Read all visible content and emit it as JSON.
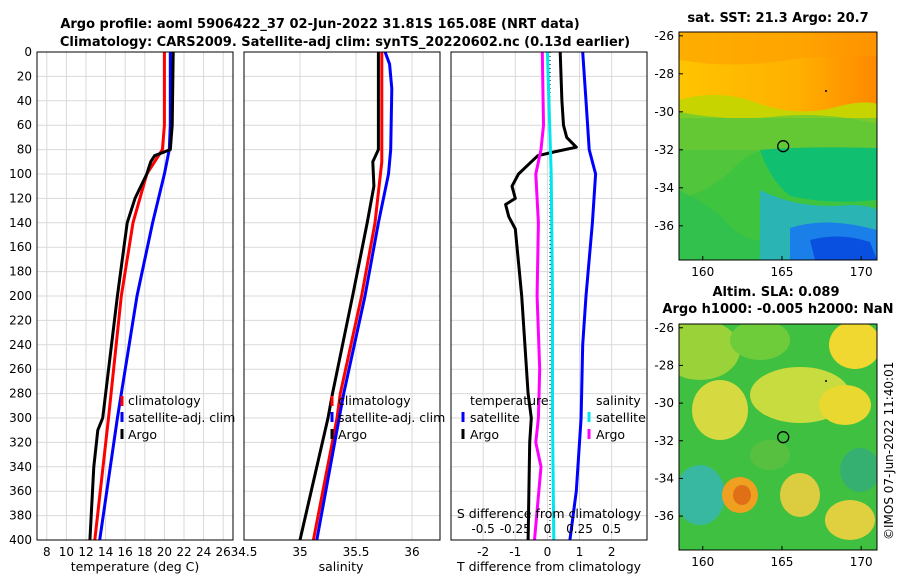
{
  "title": {
    "line1": "Argo profile: aoml 5906422_37 02-Jun-2022 31.81S 165.08E (NRT data)",
    "line2": "Climatology: CARS2009. Satellite-adj clim: synTS_20220602.nc (0.13d earlier)"
  },
  "depth_ticks": [
    "0",
    "20",
    "40",
    "60",
    "80",
    "100",
    "120",
    "140",
    "160",
    "180",
    "200",
    "220",
    "240",
    "260",
    "280",
    "300",
    "320",
    "340",
    "360",
    "380",
    "400"
  ],
  "colors": {
    "climatology": "#ff0000",
    "satellite": "#0000ff",
    "argo": "#000000",
    "sat_salinity": "#00e5ee",
    "argo_salinity": "#ff00ff"
  },
  "chart_data": [
    {
      "type": "line",
      "title": "",
      "xlabel": "temperature (deg C)",
      "ylabel": "",
      "xlim": [
        7,
        27
      ],
      "ylim": [
        400,
        0
      ],
      "xticks": [
        "8",
        "10",
        "12",
        "14",
        "16",
        "18",
        "20",
        "22",
        "24",
        "26"
      ],
      "legend": {
        "placement": "center-right",
        "entries": [
          "climatology",
          "satellite-adj. clim",
          "Argo"
        ]
      },
      "series": [
        {
          "name": "climatology",
          "depth": [
            0,
            60,
            80,
            90,
            100,
            140,
            200,
            300,
            400
          ],
          "values": [
            20.0,
            20.0,
            19.8,
            19.0,
            18.2,
            16.8,
            15.6,
            14.3,
            12.9
          ]
        },
        {
          "name": "satellite-adj. clim",
          "depth": [
            0,
            60,
            80,
            100,
            140,
            200,
            300,
            400
          ],
          "values": [
            20.6,
            20.6,
            20.5,
            20.0,
            18.8,
            17.2,
            15.2,
            13.4
          ]
        },
        {
          "name": "Argo",
          "depth": [
            0,
            60,
            80,
            85,
            90,
            100,
            120,
            140,
            200,
            300,
            310,
            340,
            400
          ],
          "values": [
            20.9,
            20.8,
            20.6,
            19.0,
            18.6,
            18.2,
            17.0,
            16.2,
            15.2,
            13.7,
            13.2,
            12.8,
            12.4
          ]
        }
      ]
    },
    {
      "type": "line",
      "title": "",
      "xlabel": "salinity",
      "ylabel": "",
      "xlim": [
        34.5,
        36.25
      ],
      "ylim": [
        400,
        0
      ],
      "xticks": [
        "34.5",
        "35",
        "35.5",
        "36"
      ],
      "legend": {
        "placement": "center-right",
        "entries": [
          "climatology",
          "satellite-adj. clim",
          "Argo"
        ]
      },
      "series": [
        {
          "name": "climatology",
          "depth": [
            0,
            90,
            140,
            200,
            280,
            300,
            400
          ],
          "values": [
            35.73,
            35.73,
            35.67,
            35.55,
            35.36,
            35.33,
            35.12
          ]
        },
        {
          "name": "satellite-adj. clim",
          "depth": [
            0,
            10,
            30,
            80,
            100,
            140,
            200,
            280,
            300,
            400
          ],
          "values": [
            35.76,
            35.8,
            35.82,
            35.81,
            35.79,
            35.7,
            35.58,
            35.39,
            35.35,
            35.15
          ]
        },
        {
          "name": "Argo",
          "depth": [
            0,
            80,
            90,
            110,
            140,
            200,
            280,
            300,
            400
          ],
          "values": [
            35.7,
            35.7,
            35.65,
            35.66,
            35.6,
            35.47,
            35.29,
            35.25,
            35.0
          ]
        }
      ]
    },
    {
      "type": "line",
      "title": "",
      "xlabel": "T difference from climatology",
      "ylabel": "",
      "xlim": [
        -3,
        3.1
      ],
      "ylim": [
        400,
        0
      ],
      "xticks": [
        "-2",
        "-1",
        "0",
        "1",
        "2"
      ],
      "secondary_xlabel": "S difference from climatology",
      "secondary_xlim": [
        -0.75,
        0.775
      ],
      "secondary_xticks": [
        "-0.5",
        "-0.25",
        "0",
        "0.25",
        "0.5"
      ],
      "legend": {
        "placement": "center",
        "headers": [
          "temperature",
          "salinity"
        ],
        "entries": [
          "satellite",
          "Argo",
          "satellite",
          "Argo"
        ]
      },
      "series": [
        {
          "name": "temperature satellite",
          "depth": [
            0,
            40,
            80,
            100,
            140,
            200,
            240,
            300,
            360,
            400
          ],
          "values": [
            1.1,
            1.2,
            1.3,
            1.5,
            1.4,
            1.2,
            1.1,
            1.05,
            0.9,
            0.7
          ]
        },
        {
          "name": "temperature Argo",
          "depth": [
            0,
            40,
            60,
            70,
            78,
            82,
            85,
            90,
            100,
            110,
            120,
            125,
            135,
            145,
            200,
            280,
            300,
            320,
            400
          ],
          "values": [
            0.4,
            0.45,
            0.5,
            0.6,
            0.9,
            0.2,
            -0.3,
            -0.5,
            -0.9,
            -1.1,
            -1.0,
            -1.3,
            -1.2,
            -1.0,
            -0.8,
            -0.6,
            -0.5,
            -0.55,
            -0.6
          ]
        },
        {
          "name": "salinity satellite",
          "depth": [
            0,
            100,
            200,
            300,
            400
          ],
          "values": [
            0.0,
            0.03,
            0.04,
            0.04,
            0.05
          ]
        },
        {
          "name": "salinity Argo",
          "depth": [
            0,
            60,
            80,
            100,
            140,
            200,
            260,
            300,
            320,
            340,
            400
          ],
          "values": [
            -0.04,
            -0.03,
            -0.05,
            -0.09,
            -0.07,
            -0.08,
            -0.06,
            -0.07,
            -0.09,
            -0.05,
            -0.1
          ]
        }
      ]
    },
    {
      "type": "heatmap",
      "title": "sat. SST: 21.3 Argo: 20.7",
      "xlim": [
        158.5,
        171
      ],
      "ylim": [
        -37.8,
        -25.8
      ],
      "xticks": [
        "160",
        "165",
        "170"
      ],
      "yticks": [
        "-26",
        "-28",
        "-30",
        "-32",
        "-34",
        "-36"
      ],
      "marker": {
        "lon": 165.08,
        "lat": -31.81
      }
    },
    {
      "type": "heatmap",
      "title": "Altim. SLA: 0.089",
      "subtitle": "Argo h1000: -0.005 h2000: NaN",
      "xlim": [
        158.5,
        171
      ],
      "ylim": [
        -37.8,
        -25.8
      ],
      "xticks": [
        "160",
        "165",
        "170"
      ],
      "yticks": [
        "-26",
        "-28",
        "-30",
        "-32",
        "-34",
        "-36"
      ],
      "marker": {
        "lon": 165.08,
        "lat": -31.81
      }
    }
  ],
  "sideline": "©IMOS 07-Jun-2022 11:40:01"
}
